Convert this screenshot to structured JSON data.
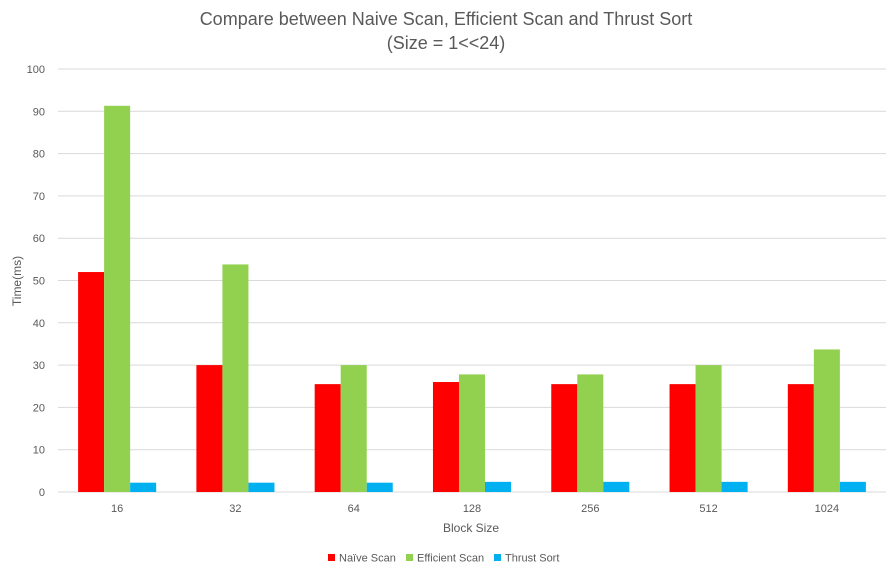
{
  "chart_data": {
    "type": "bar",
    "title": "Compare between Naive Scan, Efficient Scan and Thrust Sort",
    "subtitle": "(Size = 1<<24)",
    "xlabel": "Block Size",
    "ylabel": "Time(ms)",
    "ylim": [
      0,
      100
    ],
    "yticks": [
      "0",
      "10",
      "20",
      "30",
      "40",
      "50",
      "60",
      "70",
      "80",
      "90",
      "100"
    ],
    "grid": true,
    "legend_position": "bottom",
    "categories": [
      "16",
      "32",
      "64",
      "128",
      "256",
      "512",
      "1024"
    ],
    "series": [
      {
        "name": "Naïve Scan",
        "color": "#ff0000",
        "values": [
          52,
          30,
          25.5,
          26,
          25.5,
          25.5,
          25.5
        ]
      },
      {
        "name": "Efficient Scan",
        "color": "#92d050",
        "values": [
          91.3,
          53.8,
          30,
          27.8,
          27.8,
          30,
          33.7
        ]
      },
      {
        "name": "Thrust Sort",
        "color": "#00b0f0",
        "values": [
          2.2,
          2.2,
          2.2,
          2.4,
          2.4,
          2.4,
          2.4
        ]
      }
    ]
  }
}
